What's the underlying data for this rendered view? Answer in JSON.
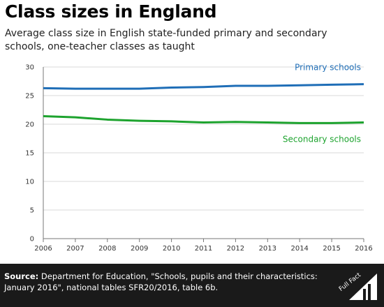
{
  "title": "Class sizes in England",
  "subtitle": "Average class size in English state-funded primary and secondary schools, one-teacher classes as taught",
  "source": {
    "label": "Source:",
    "text": "Department for Education, \"Schools, pupils and their characteristics: January 2016\", national tables SFR20/2016, table 6b."
  },
  "logo_text": "Full Fact",
  "chart_data": {
    "type": "line",
    "x": [
      2006,
      2007,
      2008,
      2009,
      2010,
      2011,
      2012,
      2013,
      2014,
      2015,
      2016
    ],
    "series": [
      {
        "name": "Primary schools",
        "color": "#1f6eb7",
        "values": [
          26.3,
          26.2,
          26.2,
          26.2,
          26.4,
          26.5,
          26.7,
          26.7,
          26.8,
          26.9,
          27.0
        ]
      },
      {
        "name": "Secondary schools",
        "color": "#1da32e",
        "values": [
          21.4,
          21.2,
          20.8,
          20.6,
          20.5,
          20.3,
          20.4,
          20.3,
          20.2,
          20.2,
          20.3
        ]
      }
    ],
    "ylim": [
      0,
      30
    ],
    "yticks": [
      0,
      5,
      10,
      15,
      20,
      25,
      30
    ],
    "xticks": [
      "2006",
      "2007",
      "2008",
      "2009",
      "2010",
      "2011",
      "2012",
      "2013",
      "2014",
      "2015",
      "2016"
    ],
    "xlabel": "",
    "ylabel": "",
    "grid": true
  }
}
